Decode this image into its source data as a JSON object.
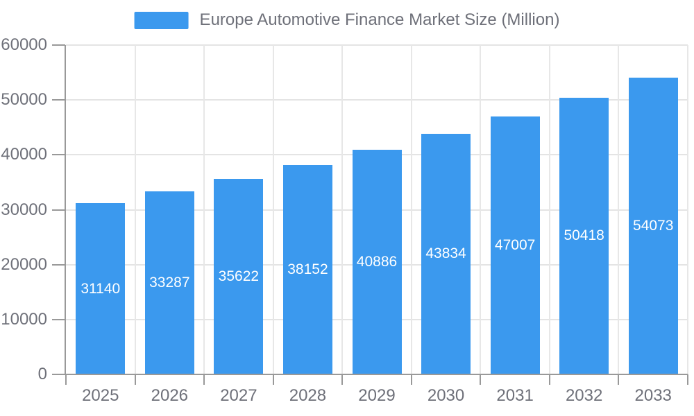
{
  "chart_data": {
    "type": "bar",
    "title": "Europe Automotive Finance Market Size (Million)",
    "legend": [
      "Europe Automotive Finance Market Size (Million)"
    ],
    "legend_position": "top-center",
    "categories": [
      "2025",
      "2026",
      "2027",
      "2028",
      "2029",
      "2030",
      "2031",
      "2032",
      "2033"
    ],
    "values": [
      31140,
      33287,
      35622,
      38152,
      40886,
      43834,
      47007,
      50418,
      54073
    ],
    "xlabel": "",
    "ylabel": "",
    "ylim": [
      0,
      60000
    ],
    "y_ticks": [
      0,
      10000,
      20000,
      30000,
      40000,
      50000,
      60000
    ],
    "grid": true,
    "value_labels": "inside-center",
    "colors": {
      "bar": "#3B99EE",
      "value_label": "#FFFFFF",
      "axis_label": "#6E7079",
      "legend_text": "#6E7079",
      "gridline": "#E4E4E4",
      "axis_line": "#999999",
      "background": "#FFFFFF"
    }
  }
}
